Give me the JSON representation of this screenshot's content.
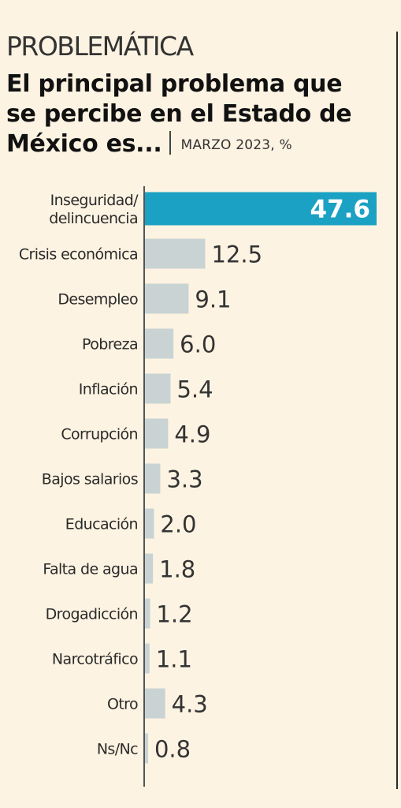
{
  "header": {
    "section": "PROBLEMÁTICA",
    "headline_line1": "El principal problema que",
    "headline_line2": "se percibe en el Estado de",
    "headline_line3": "México es...",
    "subtitle": "MARZO 2023, %"
  },
  "colors": {
    "highlight": "#1ba1c3",
    "bar": "#c9d3d3",
    "axis": "#555555"
  },
  "chart_data": {
    "type": "bar",
    "orientation": "horizontal",
    "categories": [
      [
        "Inseguridad/",
        "delincuencia"
      ],
      [
        "Crisis económica"
      ],
      [
        "Desempleo"
      ],
      [
        "Pobreza"
      ],
      [
        "Inflación"
      ],
      [
        "Corrupción"
      ],
      [
        "Bajos salarios"
      ],
      [
        "Educación"
      ],
      [
        "Falta de agua"
      ],
      [
        "Drogadicción"
      ],
      [
        "Narcotráfico"
      ],
      [
        "Otro"
      ],
      [
        "Ns/Nc"
      ]
    ],
    "values": [
      47.6,
      12.5,
      9.1,
      6.0,
      5.4,
      4.9,
      3.3,
      2.0,
      1.8,
      1.2,
      1.1,
      4.3,
      0.8
    ],
    "value_labels": [
      "47.6",
      "12.5",
      "9.1",
      "6.0",
      "5.4",
      "4.9",
      "3.3",
      "2.0",
      "1.8",
      "1.2",
      "1.1",
      "4.3",
      "0.8"
    ],
    "highlight_index": 0,
    "xlim": [
      0,
      47.6
    ]
  }
}
